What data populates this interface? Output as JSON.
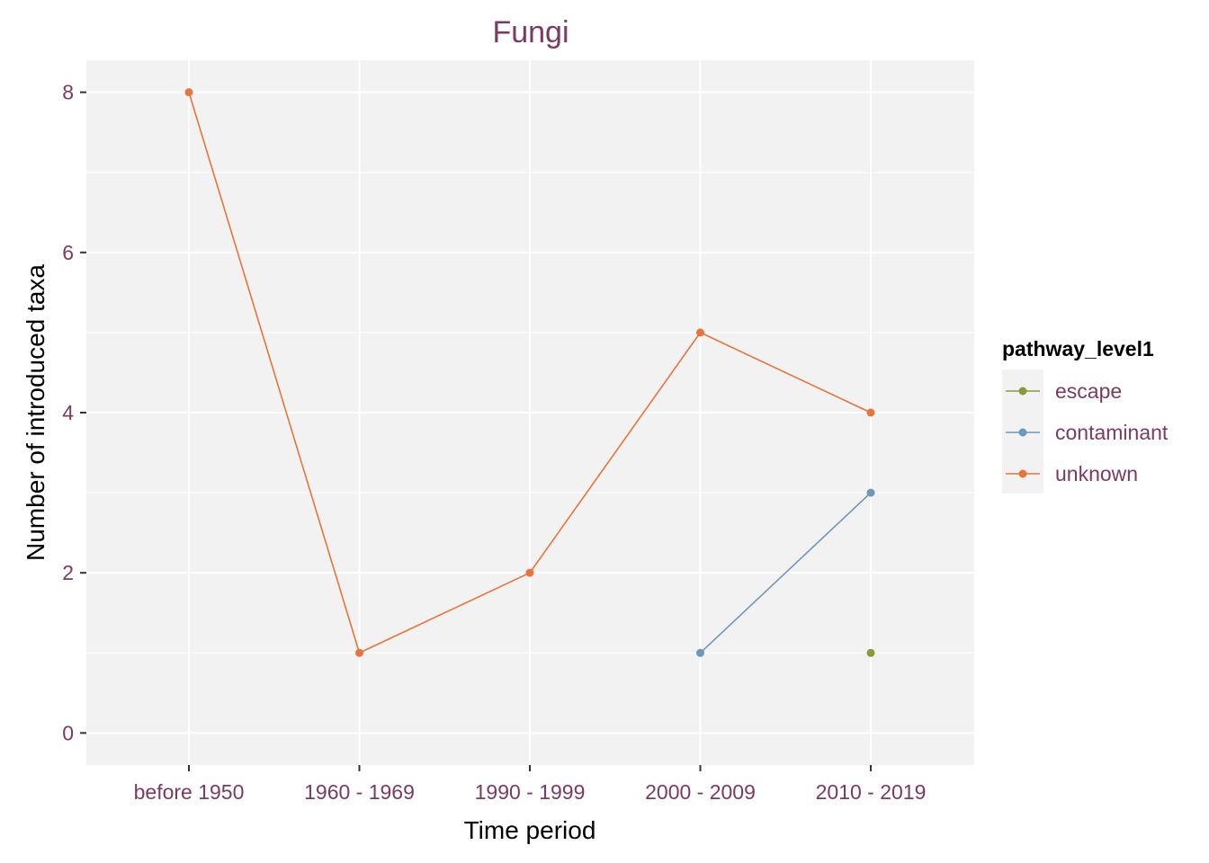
{
  "chart_data": {
    "type": "line",
    "title": "Fungi",
    "xlabel": "Time period",
    "ylabel": "Number of introduced taxa",
    "categories": [
      "before 1950",
      "1960 - 1969",
      "1990 - 1999",
      "2000 - 2009",
      "2010 - 2019"
    ],
    "ylim": [
      -0.4,
      8.4
    ],
    "yticks": [
      0,
      2,
      4,
      6,
      8
    ],
    "grid": true,
    "legend": {
      "title": "pathway_level1",
      "placement": "right"
    },
    "series": [
      {
        "name": "escape",
        "color": "#8a9a3a",
        "values": [
          null,
          null,
          null,
          null,
          1
        ]
      },
      {
        "name": "contaminant",
        "color": "#6f97bb",
        "values": [
          null,
          null,
          null,
          1,
          3
        ]
      },
      {
        "name": "unknown",
        "color": "#e8743b",
        "values": [
          8,
          1,
          2,
          5,
          4
        ]
      }
    ],
    "colors": {
      "panel_background": "#f2f2f2",
      "grid": "#ffffff",
      "text_accent": "#7b3a63"
    }
  }
}
